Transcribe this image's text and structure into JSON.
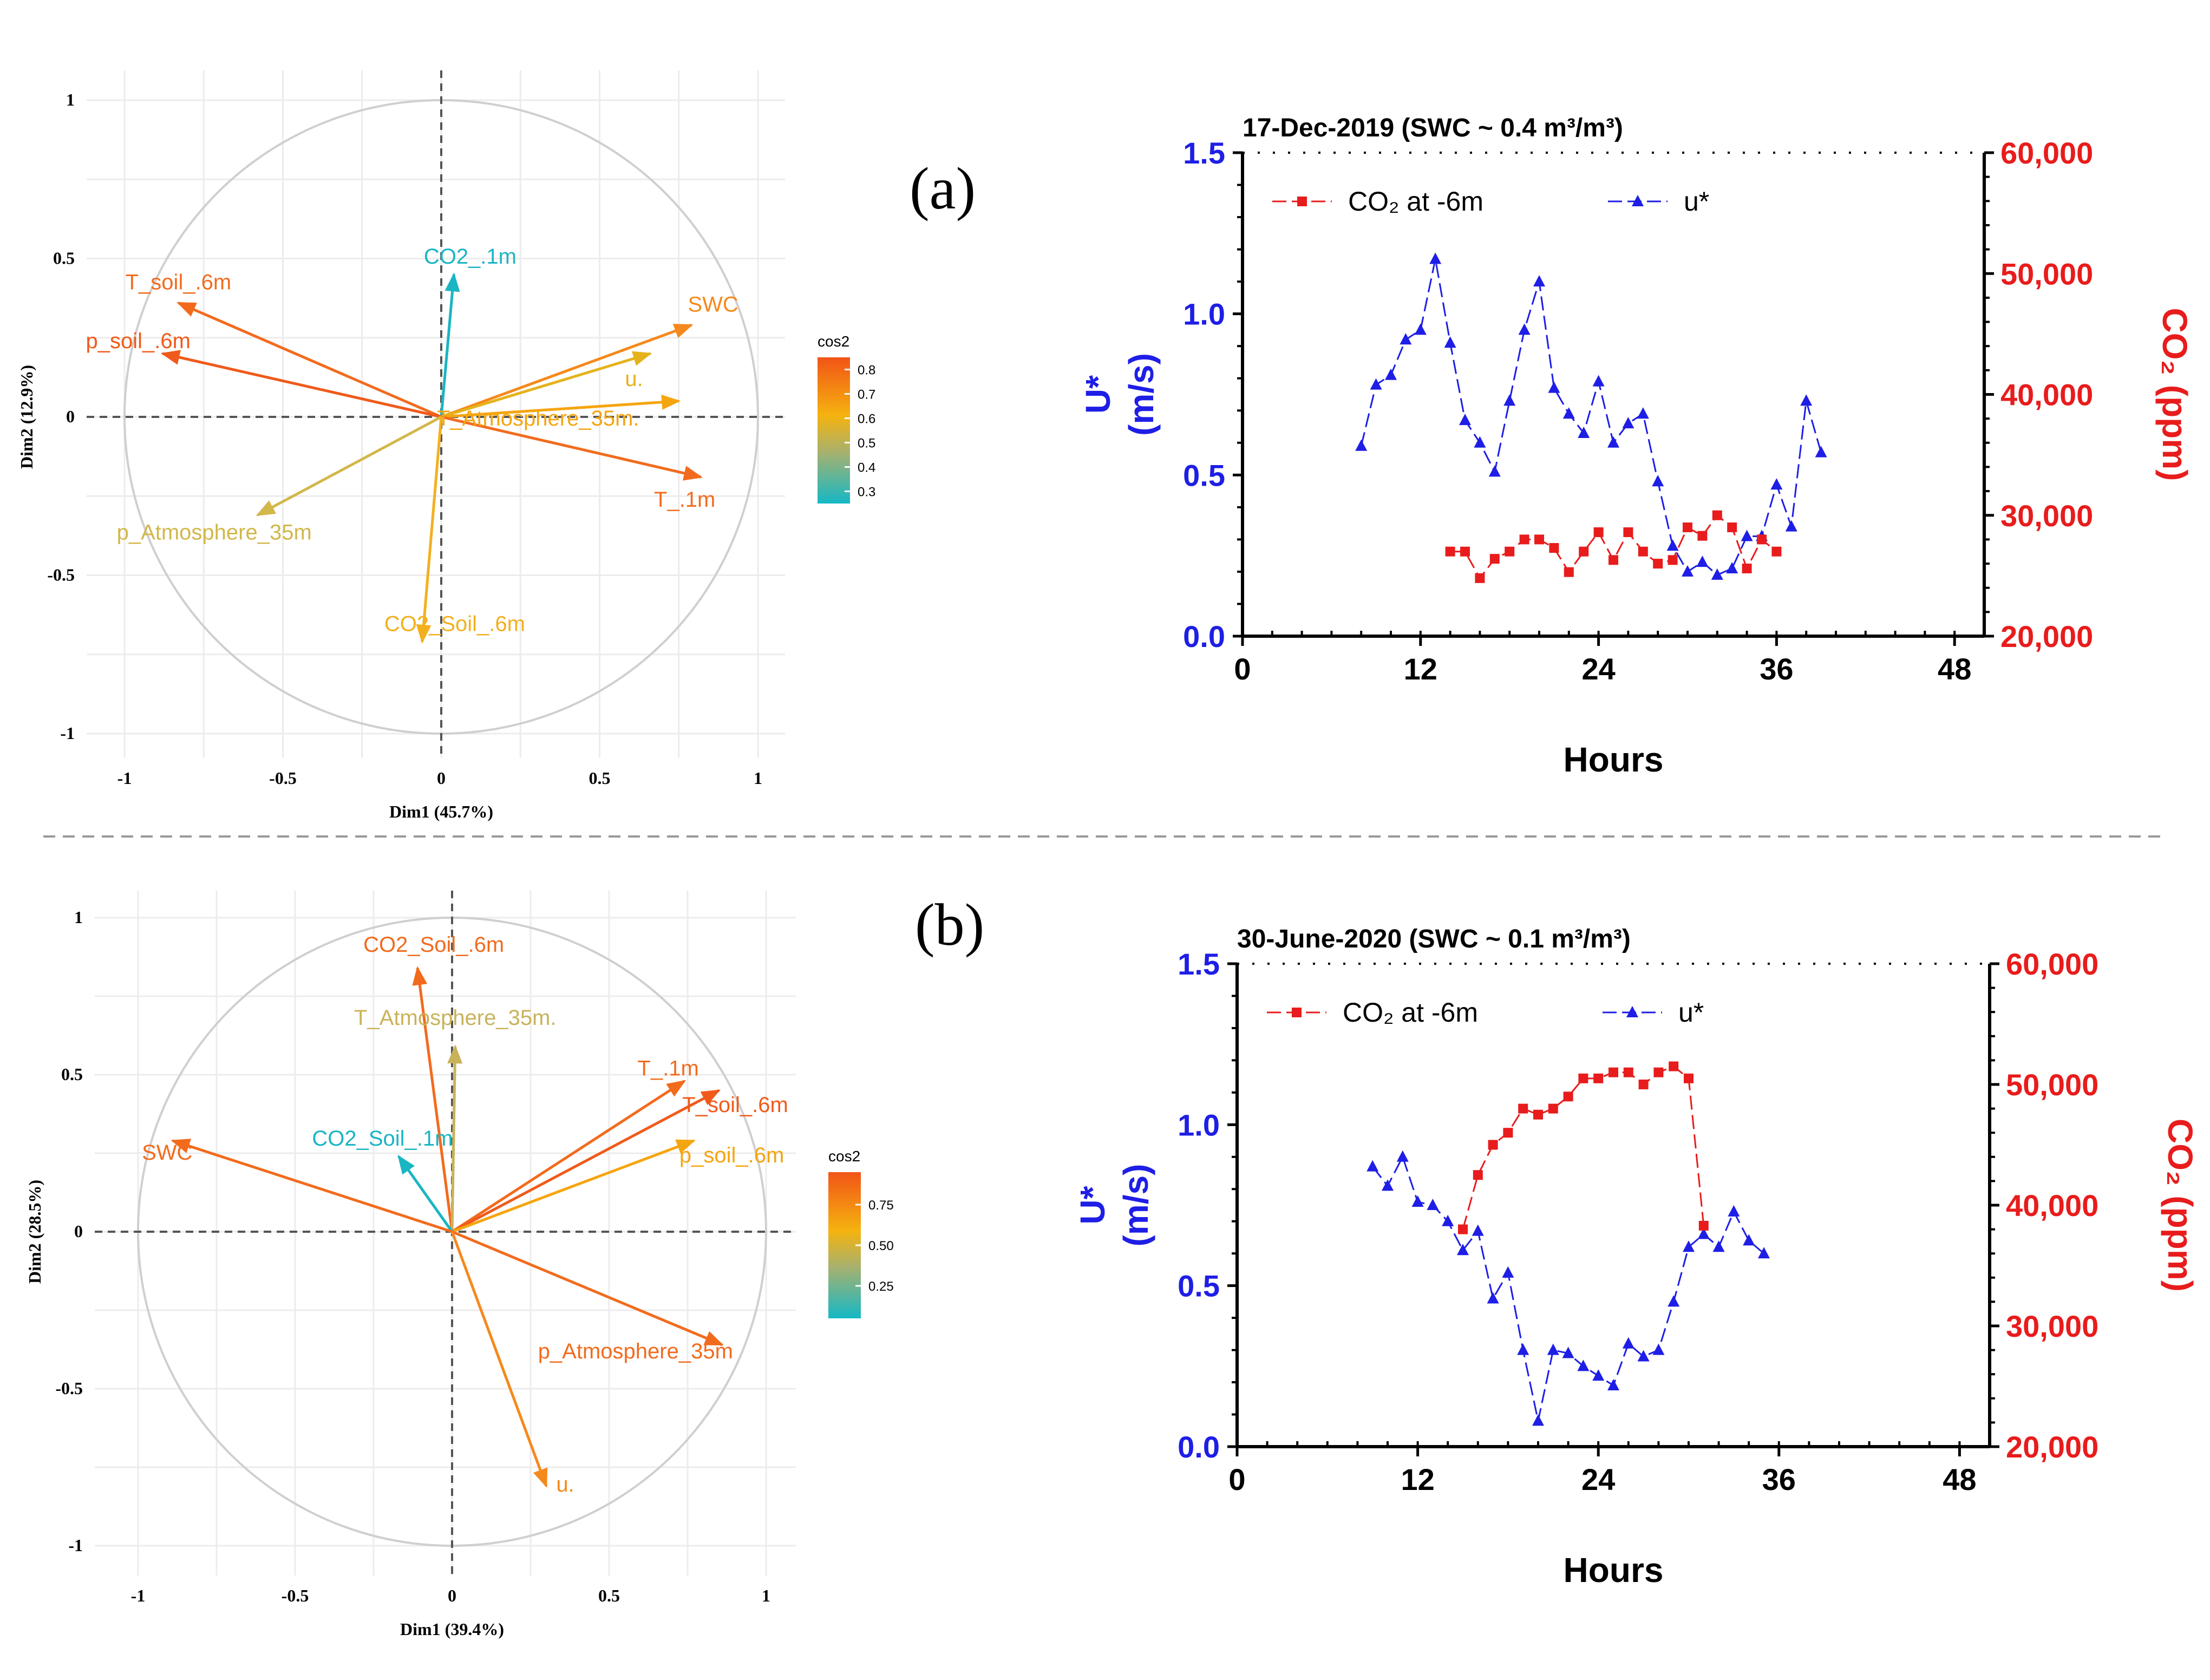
{
  "panels": [
    {
      "label": "(a)",
      "pca": {
        "xlabel": "Dim1 (45.7%)",
        "ylabel": "Dim2 (12.9%)",
        "xticks": [
          "-1",
          "-0.5",
          "0",
          "0.5",
          "1"
        ],
        "yticks": [
          "1",
          "0.5",
          "0",
          "-0.5",
          "-1"
        ],
        "legend": {
          "title": "cos2",
          "min": 0.25,
          "max": 0.85,
          "ticks": [
            "0.8",
            "0.7",
            "0.6",
            "0.5",
            "0.4",
            "0.3"
          ]
        },
        "vectors": [
          {
            "name": "CO2_.1m",
            "x": 0.04,
            "y": 0.45,
            "color": "#1ab5c3"
          },
          {
            "name": "T_soil_.6m",
            "x": -0.83,
            "y": 0.36,
            "color": "#f26b1d"
          },
          {
            "name": "p_soil_.6m",
            "x": -0.88,
            "y": 0.2,
            "color": "#f05a1a"
          },
          {
            "name": "SWC",
            "x": 0.79,
            "y": 0.29,
            "color": "#f5891c"
          },
          {
            "name": "u.",
            "x": 0.66,
            "y": 0.2,
            "color": "#e5b21b"
          },
          {
            "name": "T_Atmosphere_35m.",
            "x": 0.75,
            "y": 0.05,
            "color": "#f5a50f"
          },
          {
            "name": "T_.1m",
            "x": 0.82,
            "y": -0.19,
            "color": "#f26b1d"
          },
          {
            "name": "p_Atmosphere_35m",
            "x": -0.58,
            "y": -0.31,
            "color": "#d2b74a"
          },
          {
            "name": "CO2_Soil_.6m",
            "x": -0.06,
            "y": -0.71,
            "color": "#f3b01e"
          }
        ]
      },
      "line": {
        "title": "17-Dec-2019 (SWC ~ 0.4 m³/m³)",
        "xlabel": "Hours",
        "ylabel_left": "U* (m/s)",
        "ylabel_right": "CO₂ (ppm)",
        "xticks": [
          "0",
          "12",
          "24",
          "36",
          "48"
        ],
        "yticks_left": [
          "0.0",
          "0.5",
          "1.0",
          "1.5"
        ],
        "yticks_right": [
          "20,000",
          "30,000",
          "40,000",
          "50,000",
          "60,000"
        ],
        "legend_co2": "CO₂ at -6m",
        "legend_u": "u*",
        "series": [
          {
            "name": "u*",
            "axis": "left",
            "color": "#1e1ee6",
            "x": [
              8,
              9,
              10,
              11,
              12,
              13,
              14,
              15,
              16,
              17,
              18,
              19,
              20,
              21,
              22,
              23,
              24,
              25,
              26,
              27,
              28,
              29,
              30,
              31,
              32,
              33,
              34,
              35,
              36,
              37,
              38,
              39
            ],
            "y": [
              0.59,
              0.78,
              0.81,
              0.92,
              0.95,
              1.17,
              0.91,
              0.67,
              0.6,
              0.51,
              0.73,
              0.95,
              1.1,
              0.77,
              0.69,
              0.63,
              0.79,
              0.6,
              0.66,
              0.69,
              0.48,
              0.28,
              0.2,
              0.23,
              0.19,
              0.21,
              0.31,
              0.31,
              0.47,
              0.34,
              0.73,
              0.57
            ]
          },
          {
            "name": "CO₂ at -6m",
            "axis": "right",
            "color": "#e81c1c",
            "x": [
              14,
              15,
              16,
              17,
              18,
              19,
              20,
              21,
              22,
              23,
              24,
              25,
              26,
              27,
              28,
              29,
              30,
              31,
              32,
              33,
              34,
              35,
              36
            ],
            "y": [
              27000,
              27000,
              24800,
              26400,
              27000,
              28000,
              28000,
              27300,
              25300,
              27000,
              28600,
              26300,
              28600,
              27000,
              26000,
              26300,
              29000,
              28300,
              30000,
              29000,
              25600,
              28000,
              27000
            ]
          }
        ]
      }
    },
    {
      "label": "(b)",
      "pca": {
        "xlabel": "Dim1 (39.4%)",
        "ylabel": "Dim2 (28.5%)",
        "xticks": [
          "-1",
          "-0.5",
          "0",
          "0.5",
          "1"
        ],
        "yticks": [
          "1",
          "0.5",
          "0",
          "-0.5",
          "-1"
        ],
        "legend": {
          "title": "cos2",
          "min": 0.05,
          "max": 0.95,
          "ticks": [
            "0.75",
            "0.50",
            "0.25"
          ]
        },
        "vectors": [
          {
            "name": "CO2_Soil_.6m",
            "x": -0.11,
            "y": 0.84,
            "color": "#f26b1d"
          },
          {
            "name": "T_Atmosphere_35m.",
            "x": 0.01,
            "y": 0.59,
            "color": "#c8b35a"
          },
          {
            "name": "T_.1m",
            "x": 0.74,
            "y": 0.48,
            "color": "#f26b1d"
          },
          {
            "name": "T_soil_.6m",
            "x": 0.85,
            "y": 0.45,
            "color": "#f05a1a"
          },
          {
            "name": "p_soil_.6m",
            "x": 0.77,
            "y": 0.29,
            "color": "#f5a50f"
          },
          {
            "name": "CO2_Soil_.1m",
            "x": -0.17,
            "y": 0.24,
            "color": "#1ab5c3"
          },
          {
            "name": "SWC",
            "x": -0.89,
            "y": 0.29,
            "color": "#f26b1d"
          },
          {
            "name": "p_Atmosphere_35m",
            "x": 0.86,
            "y": -0.36,
            "color": "#f26b1d"
          },
          {
            "name": "u.",
            "x": 0.3,
            "y": -0.81,
            "color": "#f5891c"
          }
        ]
      },
      "line": {
        "title": "30-June-2020 (SWC ~ 0.1 m³/m³)",
        "xlabel": "Hours",
        "ylabel_left": "U* (m/s)",
        "ylabel_right": "CO₂ (ppm)",
        "xticks": [
          "0",
          "12",
          "24",
          "36",
          "48"
        ],
        "yticks_left": [
          "0.0",
          "0.5",
          "1.0",
          "1.5"
        ],
        "yticks_right": [
          "20,000",
          "30,000",
          "40,000",
          "50,000",
          "60,000"
        ],
        "legend_co2": "CO₂ at -6m",
        "legend_u": "u*",
        "series": [
          {
            "name": "u*",
            "axis": "left",
            "color": "#1e1ee6",
            "x": [
              9,
              10,
              11,
              12,
              13,
              14,
              15,
              16,
              17,
              18,
              19,
              20,
              21,
              22,
              23,
              24,
              25,
              26,
              27,
              28,
              29,
              30,
              31,
              32,
              33,
              34,
              35
            ],
            "y": [
              0.87,
              0.81,
              0.9,
              0.76,
              0.75,
              0.7,
              0.61,
              0.67,
              0.46,
              0.54,
              0.3,
              0.08,
              0.3,
              0.29,
              0.25,
              0.22,
              0.19,
              0.32,
              0.28,
              0.3,
              0.45,
              0.62,
              0.66,
              0.62,
              0.73,
              0.64,
              0.6
            ]
          },
          {
            "name": "CO₂ at -6m",
            "axis": "right",
            "color": "#e81c1c",
            "x": [
              15,
              16,
              17,
              18,
              19,
              20,
              21,
              22,
              23,
              24,
              25,
              26,
              27,
              28,
              29,
              30,
              31
            ],
            "y": [
              38000,
              42500,
              45000,
              46000,
              48000,
              47500,
              48000,
              49000,
              50500,
              50500,
              51000,
              51000,
              50000,
              51000,
              51500,
              50500,
              38300
            ]
          }
        ]
      }
    }
  ]
}
